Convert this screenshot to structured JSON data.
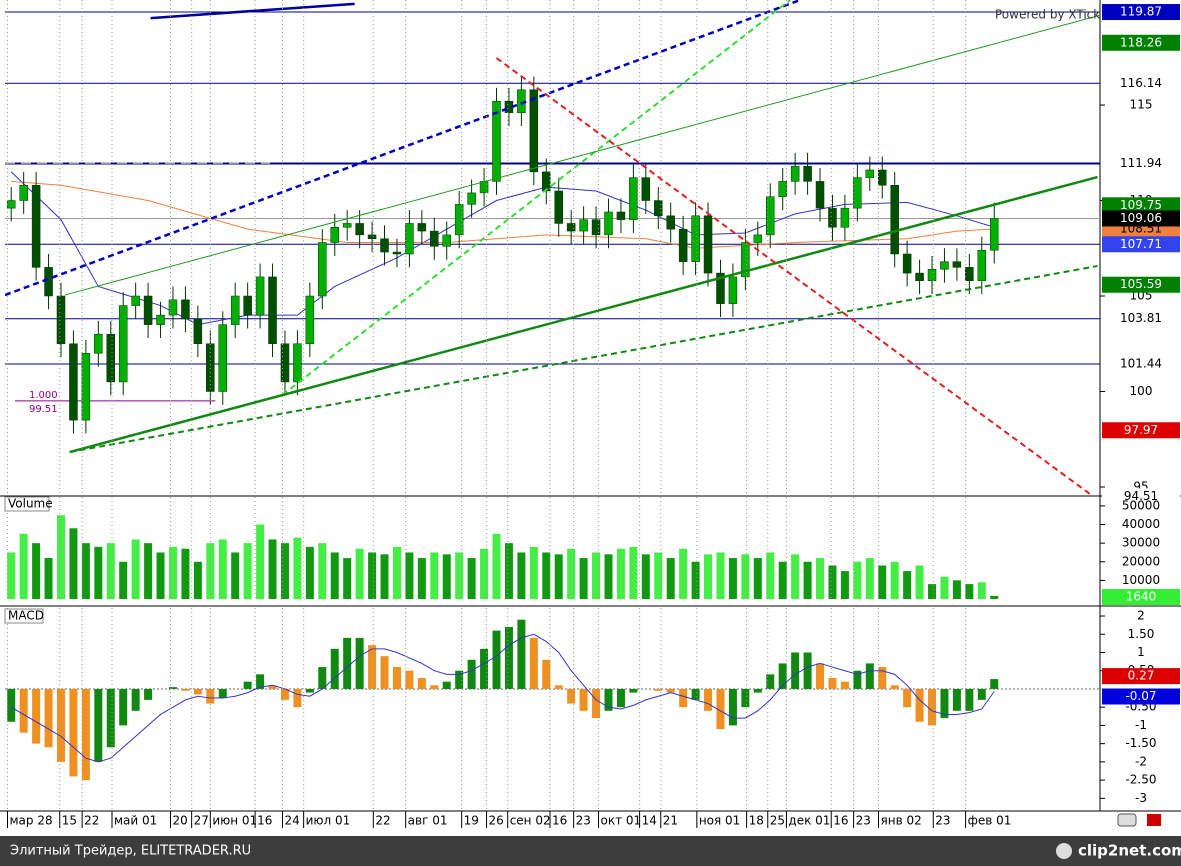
{
  "chart_data": [
    {
      "type": "candlestick",
      "xlim": [
        0,
        88
      ],
      "ylim": [
        94.58,
        120.5
      ],
      "yticks": [
        95,
        100,
        105,
        110,
        115
      ],
      "up_color": "#00b000",
      "down_color": "#005000",
      "open": [
        109.6,
        110.0,
        110.8,
        106.5,
        105,
        102.5,
        98.5,
        102,
        103,
        100.5,
        104.5,
        105,
        103.5,
        104,
        104.8,
        103.8,
        102.5,
        100,
        103.5,
        105,
        104,
        106,
        102.5,
        100.5,
        102.5,
        105,
        107.8,
        108.6,
        108.8,
        108.2,
        108,
        107.3,
        107.2,
        108.8,
        108.4,
        107.6,
        108.2,
        109.8,
        110.4,
        111,
        115.2,
        114.6,
        115.8,
        111.5,
        110.5,
        108.8,
        108.4,
        109,
        108.2,
        109.4,
        109,
        111.2,
        110,
        109.2,
        108.5,
        106.8,
        109.2,
        106.2,
        104.6,
        106,
        107.8,
        108.2,
        110.2,
        111,
        111.8,
        111,
        109.6,
        108.6,
        109.6,
        111.2,
        111.6,
        110.8,
        107.2,
        106.2,
        105.8,
        106.4,
        106.8,
        106.5,
        105.8,
        107.4
      ],
      "high": [
        110.7,
        111.5,
        111.5,
        107.2,
        105.7,
        103.2,
        102.7,
        103.7,
        103.7,
        105.2,
        105.7,
        105.7,
        104.7,
        105.5,
        105.5,
        104.5,
        103.2,
        104.2,
        105.7,
        105.7,
        106.7,
        106.7,
        103.2,
        103.2,
        105.7,
        108.5,
        109.3,
        109.5,
        109.5,
        108.9,
        108.7,
        108,
        109.5,
        109.5,
        109.1,
        108.9,
        110.5,
        111.1,
        111.7,
        115.9,
        115.9,
        116.5,
        116.5,
        112.2,
        111.2,
        109.5,
        109.7,
        109.7,
        110.1,
        110.1,
        111.9,
        111.9,
        110.7,
        109.9,
        109.2,
        109.9,
        109.9,
        106.9,
        106.7,
        108.5,
        108.9,
        110.9,
        111.7,
        112.5,
        112.5,
        111.7,
        110.3,
        110.3,
        111.9,
        112.3,
        112.3,
        111.5,
        107.9,
        106.9,
        107.1,
        107.5,
        107.5,
        107.2,
        108.1,
        109.9
      ],
      "low": [
        108.9,
        109.3,
        105.8,
        104.3,
        101.8,
        97.8,
        97.8,
        101.3,
        99.8,
        99.8,
        103.8,
        102.8,
        102.8,
        103.3,
        103.1,
        101.8,
        99.3,
        99.3,
        102.8,
        103.3,
        103.3,
        101.8,
        99.8,
        99.8,
        101.8,
        104.3,
        107.1,
        107.9,
        107.5,
        107.3,
        106.6,
        106.5,
        106.5,
        107.7,
        106.9,
        106.9,
        107.5,
        109.1,
        109.7,
        110.3,
        113.9,
        113.9,
        110.8,
        109.8,
        108.1,
        107.7,
        107.7,
        107.5,
        107.5,
        108.3,
        108.3,
        109.3,
        108.5,
        107.8,
        106.1,
        106.1,
        105.5,
        103.9,
        103.9,
        105.3,
        107.1,
        107.5,
        109.5,
        110.3,
        110.3,
        108.9,
        107.9,
        107.9,
        108.9,
        110.5,
        110.1,
        106.5,
        105.5,
        105.1,
        105.1,
        105.7,
        105.8,
        105.1,
        105.1,
        106.7
      ],
      "close": [
        110.0,
        110.8,
        106.5,
        105,
        102.5,
        98.5,
        102,
        103,
        100.5,
        104.5,
        105,
        103.5,
        104,
        104.8,
        103.8,
        102.5,
        100,
        103.5,
        105,
        104,
        106,
        102.5,
        100.5,
        102.5,
        105,
        107.8,
        108.6,
        108.8,
        108.2,
        108,
        107.3,
        107.2,
        108.8,
        108.4,
        107.6,
        108.2,
        109.8,
        110.4,
        111,
        115.2,
        114.6,
        115.8,
        111.5,
        110.5,
        108.8,
        108.4,
        109,
        108.2,
        109.4,
        109,
        111.2,
        110,
        109.2,
        108.5,
        106.8,
        109.2,
        106.2,
        104.6,
        106,
        107.8,
        108.2,
        110.2,
        111,
        111.8,
        111,
        109.6,
        108.6,
        109.6,
        111.2,
        111.6,
        110.8,
        107.2,
        106.2,
        105.8,
        106.4,
        106.8,
        106.5,
        105.8,
        107.4,
        109.06
      ],
      "levels": [
        119.87,
        116.14,
        111.94,
        107.71,
        103.81,
        101.44
      ],
      "level_color": "#00008b",
      "lines": [
        {
          "color": "#3333cc",
          "x": [
            0,
            4,
            7,
            12,
            15,
            19,
            23,
            26,
            31,
            35,
            39,
            43,
            47,
            51,
            55,
            59,
            63,
            67,
            72,
            76,
            79
          ],
          "values": [
            111.5,
            109,
            105.5,
            104.5,
            103.5,
            104,
            104,
            105.5,
            107,
            108.5,
            110,
            110.7,
            110.5,
            109.5,
            108.2,
            108.3,
            109.3,
            109.8,
            109.9,
            109.2,
            108.6
          ]
        },
        {
          "color": "#f08040",
          "x": [
            0,
            4,
            11,
            19,
            27,
            35,
            43,
            51,
            55,
            63,
            72,
            76,
            79
          ],
          "values": [
            111,
            110.8,
            110,
            108.5,
            107.8,
            107.8,
            108.2,
            108,
            107.5,
            107.8,
            108,
            108.4,
            108.51
          ]
        }
      ],
      "drawings": [
        {
          "color": "#0000c0",
          "dash": "6,4",
          "width": 2.5,
          "x": [
            0,
            63.9
          ],
          "y": [
            105.05,
            120.5
          ]
        },
        {
          "color": "#0000a0",
          "dash": "",
          "width": 2.5,
          "x": [
            11.7,
            28.1
          ],
          "y": [
            119.55,
            120.3
          ]
        },
        {
          "color": "#33dd33",
          "dash": "6,4",
          "width": 2,
          "x": [
            22.3,
            63.1
          ],
          "y": [
            99.82,
            120.5
          ]
        },
        {
          "color": "#229922",
          "dash": "",
          "width": 1,
          "x": [
            4.8,
            88
          ],
          "y": [
            105.05,
            119.7
          ]
        },
        {
          "color": "#118811",
          "dash": "",
          "width": 2.5,
          "x": [
            5.2,
            87.8
          ],
          "y": [
            96.83,
            111.23
          ]
        },
        {
          "color": "#118811",
          "dash": "6,4",
          "width": 2,
          "x": [
            5.2,
            87.8
          ],
          "y": [
            96.83,
            106.57
          ]
        },
        {
          "color": "#dd2222",
          "dash": "6,4",
          "width": 2,
          "x": [
            39.5,
            87.2
          ],
          "y": [
            117.46,
            94.63
          ]
        },
        {
          "color": "#aaaaaa",
          "dash": "10,6",
          "width": 1.5,
          "x": [
            0,
            21.3
          ],
          "y": [
            111.96,
            111.96
          ]
        }
      ],
      "marker": {
        "label": "1.000",
        "value": 99.51,
        "x": [
          0.8,
          16.9
        ],
        "color": "#8b008b"
      },
      "right_labels": [
        {
          "value": 119.87,
          "bg": "#0000c0",
          "fg": "#ffffff"
        },
        {
          "value": 118.26,
          "bg": "#008000",
          "fg": "#ffffff"
        },
        {
          "value": 116.14,
          "bg": "#ffffff",
          "fg": "#000000"
        },
        {
          "value": 111.94,
          "bg": "#ffffff",
          "fg": "#000000"
        },
        {
          "value": 109.75,
          "bg": "#008000",
          "fg": "#ffffff"
        },
        {
          "value": 108.51,
          "bg": "#f08040",
          "fg": "#000000"
        },
        {
          "value": 107.71,
          "bg": "#3344ee",
          "fg": "#ffffff"
        },
        {
          "value": 105.59,
          "bg": "#008000",
          "fg": "#ffffff"
        },
        {
          "value": 103.81,
          "bg": "#ffffff",
          "fg": "#000000"
        },
        {
          "value": 101.44,
          "bg": "#ffffff",
          "fg": "#000000"
        },
        {
          "value": 97.97,
          "bg": "#dd0000",
          "fg": "#ffffff"
        },
        {
          "value": 94.51,
          "bg": "#ffffff",
          "fg": "#000000"
        }
      ],
      "watermark": "Powered by XTick"
    },
    {
      "type": "bar",
      "title": "Volume",
      "xlim": [
        0,
        88
      ],
      "ylim": [
        0,
        54800
      ],
      "yticks": [
        10000,
        20000,
        30000,
        40000,
        50000
      ],
      "up_color": "#44ee44",
      "down_color": "#119911",
      "values": [
        25000,
        35000,
        30000,
        22000,
        45000,
        38000,
        30000,
        28000,
        30000,
        20000,
        32000,
        30000,
        25000,
        28000,
        27000,
        20000,
        30000,
        32000,
        25000,
        30000,
        40000,
        32000,
        30000,
        33000,
        28000,
        30000,
        25000,
        22000,
        27000,
        25000,
        24000,
        28000,
        25000,
        22000,
        25000,
        24000,
        25000,
        22000,
        27000,
        35000,
        30000,
        25000,
        28000,
        25000,
        24000,
        27000,
        22000,
        25000,
        24000,
        27000,
        28000,
        24000,
        25000,
        22000,
        27000,
        20000,
        24000,
        25000,
        22000,
        24000,
        22000,
        25000,
        20000,
        24000,
        20000,
        22000,
        18000,
        15000,
        20000,
        22000,
        18000,
        20000,
        15000,
        18000,
        8000,
        12000,
        10000,
        8000,
        9000,
        1640
      ]
    },
    {
      "type": "macd",
      "title": "MACD",
      "xlim": [
        0,
        88
      ],
      "ylim": [
        -3.32,
        2.22
      ],
      "yticks": [
        2,
        {
          "value": 1.5,
          "label": "1.50"
        },
        1,
        {
          "value": 0.5,
          "label": "0.50"
        },
        {
          "value": -0.5,
          "label": "-0.50"
        },
        -1,
        {
          "value": -1.5,
          "label": "-1.50"
        },
        -2,
        {
          "value": -2.5,
          "label": "-2.50"
        },
        -3
      ],
      "up_color": "#118811",
      "down_color": "#f09020",
      "signal_color": "#3333cc",
      "values": [
        -0.9,
        -1.2,
        -1.5,
        -1.6,
        -2.0,
        -2.4,
        -2.5,
        -2.0,
        -1.6,
        -1.0,
        -0.6,
        -0.3,
        0.0,
        0.05,
        -0.05,
        -0.15,
        -0.4,
        -0.25,
        0.0,
        0.2,
        0.4,
        0.1,
        -0.3,
        -0.5,
        -0.1,
        0.6,
        1.1,
        1.4,
        1.4,
        1.2,
        0.9,
        0.6,
        0.5,
        0.3,
        0.1,
        0.2,
        0.5,
        0.8,
        1.1,
        1.6,
        1.7,
        1.9,
        1.4,
        0.8,
        0.1,
        -0.4,
        -0.6,
        -0.8,
        -0.6,
        -0.5,
        -0.1,
        0.0,
        -0.05,
        -0.1,
        -0.5,
        -0.3,
        -0.6,
        -1.1,
        -1.0,
        -0.5,
        -0.1,
        0.4,
        0.7,
        1.0,
        1.0,
        0.7,
        0.3,
        0.2,
        0.5,
        0.7,
        0.6,
        0.1,
        -0.5,
        -0.9,
        -1.0,
        -0.8,
        -0.6,
        -0.6,
        -0.3,
        0.27
      ],
      "signal": [
        -0.5,
        -0.7,
        -0.9,
        -1.1,
        -1.3,
        -1.6,
        -1.9,
        -2.0,
        -1.9,
        -1.6,
        -1.3,
        -1.0,
        -0.7,
        -0.5,
        -0.3,
        -0.2,
        -0.25,
        -0.25,
        -0.2,
        -0.1,
        0.05,
        0.1,
        0.0,
        -0.15,
        -0.2,
        0.0,
        0.3,
        0.6,
        0.9,
        1.1,
        1.1,
        1.0,
        0.85,
        0.7,
        0.5,
        0.4,
        0.4,
        0.5,
        0.7,
        0.9,
        1.2,
        1.4,
        1.5,
        1.3,
        1.0,
        0.5,
        0.1,
        -0.3,
        -0.5,
        -0.55,
        -0.45,
        -0.3,
        -0.2,
        -0.1,
        -0.2,
        -0.3,
        -0.4,
        -0.6,
        -0.8,
        -0.8,
        -0.6,
        -0.3,
        0.1,
        0.4,
        0.6,
        0.7,
        0.6,
        0.5,
        0.4,
        0.5,
        0.5,
        0.4,
        0.1,
        -0.3,
        -0.6,
        -0.7,
        -0.7,
        -0.65,
        -0.55,
        -0.07
      ],
      "xticks": [
        {
          "value": 0.2,
          "label": "мар 28"
        },
        {
          "value": 4.4,
          "label": "15"
        },
        {
          "value": 6.2,
          "label": "22"
        },
        {
          "value": 8.6,
          "label": "май 01"
        },
        {
          "value": 13.3,
          "label": "20"
        },
        {
          "value": 15,
          "label": "27"
        },
        {
          "value": 16.5,
          "label": "июн 01"
        },
        {
          "value": 20.1,
          "label": "16"
        },
        {
          "value": 22.3,
          "label": "24"
        },
        {
          "value": 24,
          "label": "июл 01"
        },
        {
          "value": 29.6,
          "label": "22"
        },
        {
          "value": 32.2,
          "label": "авг 01"
        },
        {
          "value": 36.7,
          "label": "19"
        },
        {
          "value": 38.7,
          "label": "26"
        },
        {
          "value": 40.4,
          "label": "сен 02"
        },
        {
          "value": 43.8,
          "label": "16"
        },
        {
          "value": 45.7,
          "label": "23"
        },
        {
          "value": 47.7,
          "label": "окт 01"
        },
        {
          "value": 51,
          "label": "14"
        },
        {
          "value": 52.7,
          "label": "21"
        },
        {
          "value": 55.6,
          "label": "ноя 01"
        },
        {
          "value": 59.6,
          "label": "18"
        },
        {
          "value": 61.3,
          "label": "25"
        },
        {
          "value": 62.8,
          "label": "дек 01"
        },
        {
          "value": 66.4,
          "label": "16"
        },
        {
          "value": 68.2,
          "label": "23"
        },
        {
          "value": 70.2,
          "label": "янв 02"
        },
        {
          "value": 74.6,
          "label": "23"
        },
        {
          "value": 77.2,
          "label": "фев 01"
        }
      ]
    }
  ],
  "footer": {
    "left": "Элитный Трейдер, ELITETRADER.RU",
    "right": "clip2net.com"
  }
}
